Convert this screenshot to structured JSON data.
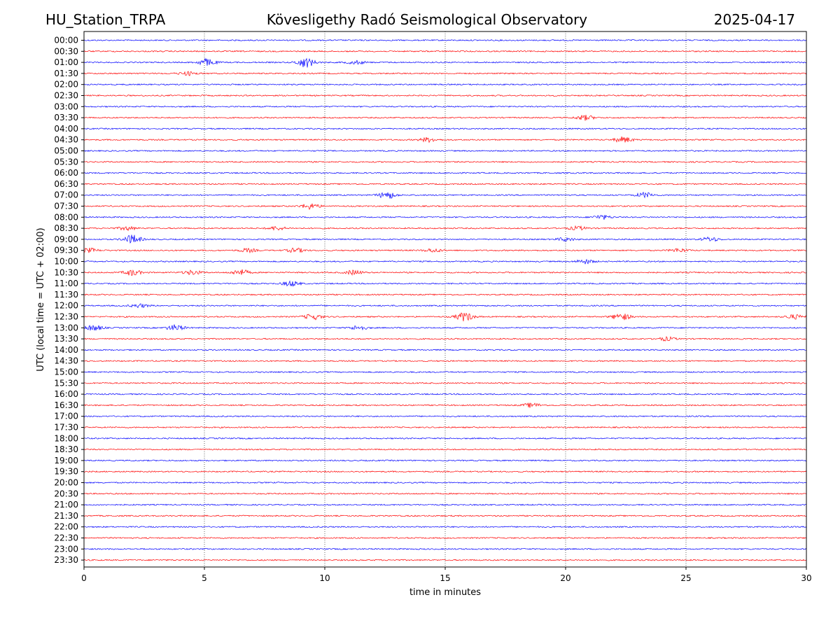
{
  "header": {
    "station": "HU_Station_TRPA",
    "observatory": "Kövesligethy Radó Seismological Observatory",
    "date": "2025-04-17"
  },
  "chart_data": {
    "type": "line",
    "title": "Kövesligethy Radó Seismological Observatory",
    "xlabel": "time in minutes",
    "ylabel": "UTC (local time = UTC + 02:00)",
    "xlim": [
      0,
      30
    ],
    "xticks": [
      0,
      5,
      10,
      15,
      20,
      25,
      30
    ],
    "grid_x": true,
    "colors": [
      "#0000ff",
      "#ff0000"
    ],
    "rows": [
      "00:00",
      "00:30",
      "01:00",
      "01:30",
      "02:00",
      "02:30",
      "03:00",
      "03:30",
      "04:00",
      "04:30",
      "05:00",
      "05:30",
      "06:00",
      "06:30",
      "07:00",
      "07:30",
      "08:00",
      "08:30",
      "09:00",
      "09:30",
      "10:00",
      "10:30",
      "11:00",
      "11:30",
      "12:00",
      "12:30",
      "13:00",
      "13:30",
      "14:00",
      "14:30",
      "15:00",
      "15:30",
      "16:00",
      "16:30",
      "17:00",
      "17:30",
      "18:00",
      "18:30",
      "19:00",
      "19:30",
      "20:00",
      "20:30",
      "21:00",
      "21:30",
      "22:00",
      "22:30",
      "23:00",
      "23:30"
    ],
    "bursts": [
      {
        "row": 2,
        "minute": 5.1,
        "amp": 5
      },
      {
        "row": 2,
        "minute": 9.2,
        "amp": 7
      },
      {
        "row": 2,
        "minute": 11.3,
        "amp": 2.5
      },
      {
        "row": 3,
        "minute": 4.3,
        "amp": 2.5
      },
      {
        "row": 7,
        "minute": 20.8,
        "amp": 3.5
      },
      {
        "row": 9,
        "minute": 14.3,
        "amp": 3
      },
      {
        "row": 9,
        "minute": 22.4,
        "amp": 4
      },
      {
        "row": 14,
        "minute": 12.6,
        "amp": 5
      },
      {
        "row": 14,
        "minute": 23.3,
        "amp": 3.5
      },
      {
        "row": 15,
        "minute": 9.4,
        "amp": 4
      },
      {
        "row": 16,
        "minute": 21.5,
        "amp": 3
      },
      {
        "row": 17,
        "minute": 1.8,
        "amp": 2.5
      },
      {
        "row": 17,
        "minute": 8.0,
        "amp": 2.5
      },
      {
        "row": 17,
        "minute": 20.5,
        "amp": 2.5
      },
      {
        "row": 18,
        "minute": 2.0,
        "amp": 6
      },
      {
        "row": 18,
        "minute": 20.0,
        "amp": 2.5
      },
      {
        "row": 18,
        "minute": 26.0,
        "amp": 3
      },
      {
        "row": 19,
        "minute": 0.2,
        "amp": 3
      },
      {
        "row": 19,
        "minute": 6.8,
        "amp": 2.5
      },
      {
        "row": 19,
        "minute": 8.8,
        "amp": 3
      },
      {
        "row": 19,
        "minute": 14.5,
        "amp": 2.5
      },
      {
        "row": 19,
        "minute": 24.7,
        "amp": 2.5
      },
      {
        "row": 20,
        "minute": 20.8,
        "amp": 3
      },
      {
        "row": 21,
        "minute": 2.0,
        "amp": 4
      },
      {
        "row": 21,
        "minute": 4.5,
        "amp": 3
      },
      {
        "row": 21,
        "minute": 6.5,
        "amp": 4
      },
      {
        "row": 21,
        "minute": 11.2,
        "amp": 3
      },
      {
        "row": 22,
        "minute": 8.6,
        "amp": 3.5
      },
      {
        "row": 24,
        "minute": 2.3,
        "amp": 2.5
      },
      {
        "row": 25,
        "minute": 9.5,
        "amp": 4
      },
      {
        "row": 25,
        "minute": 15.8,
        "amp": 6
      },
      {
        "row": 25,
        "minute": 22.3,
        "amp": 5
      },
      {
        "row": 25,
        "minute": 29.5,
        "amp": 3
      },
      {
        "row": 26,
        "minute": 0.4,
        "amp": 4
      },
      {
        "row": 26,
        "minute": 3.8,
        "amp": 4
      },
      {
        "row": 26,
        "minute": 11.4,
        "amp": 3
      },
      {
        "row": 27,
        "minute": 24.2,
        "amp": 2.5
      },
      {
        "row": 33,
        "minute": 18.6,
        "amp": 3
      }
    ]
  }
}
